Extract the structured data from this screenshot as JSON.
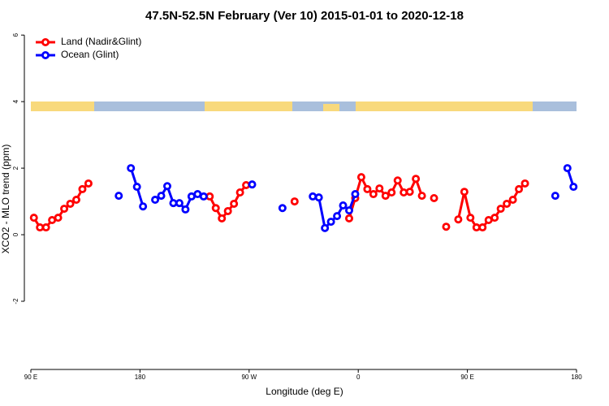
{
  "chart_data": {
    "type": "line",
    "title": "47.5N-52.5N February (Ver 10)   2015-01-01 to 2020-12-18",
    "xlabel": "Longitude (deg E)",
    "ylabel": "XCO2 - MLO trend (ppm)",
    "x": [
      92.5,
      97.5,
      102.5,
      107.5,
      112.5,
      117.5,
      122.5,
      127.5,
      132.5,
      137.5,
      142.5,
      147.5,
      152.5,
      157.5,
      162.5,
      167.5,
      172.5,
      177.5,
      182.5,
      187.5,
      192.5,
      197.5,
      202.5,
      207.5,
      212.5,
      217.5,
      222.5,
      227.5,
      232.5,
      237.5,
      242.5,
      247.5,
      252.5,
      257.5,
      262.5,
      267.5,
      272.5,
      277.5,
      282.5,
      287.5,
      292.5,
      297.5,
      302.5,
      307.5,
      312.5,
      317.5,
      322.5,
      327.5,
      332.5,
      337.5,
      342.5,
      347.5,
      352.5,
      357.5,
      362.5,
      367.5,
      372.5,
      377.5,
      382.5,
      387.5,
      392.5,
      397.5,
      402.5,
      407.5,
      412.5,
      417.5,
      422.5,
      427.5,
      432.5,
      437.5,
      442.5,
      447.5,
      452.5,
      457.5,
      462.5,
      467.5,
      472.5,
      477.5,
      482.5,
      487.5,
      492.5,
      497.5,
      502.5,
      507.5,
      512.5,
      517.5,
      522.5,
      527.5,
      532.5,
      537.5
    ],
    "series": [
      {
        "name": "Land (Nadir&Glint)",
        "color": "#ff0000",
        "values": [
          0.51,
          0.22,
          0.22,
          0.44,
          0.51,
          0.78,
          0.93,
          1.05,
          1.37,
          1.54,
          null,
          null,
          null,
          null,
          null,
          null,
          null,
          null,
          null,
          null,
          null,
          null,
          null,
          null,
          null,
          null,
          null,
          null,
          null,
          1.15,
          0.8,
          0.49,
          0.71,
          0.93,
          1.27,
          1.49,
          null,
          null,
          null,
          null,
          null,
          null,
          null,
          1.0,
          null,
          null,
          null,
          null,
          null,
          null,
          null,
          null,
          0.49,
          1.1,
          1.73,
          1.37,
          1.22,
          1.39,
          1.17,
          1.27,
          1.63,
          1.27,
          1.29,
          1.68,
          1.17,
          null,
          1.1,
          null,
          0.24,
          null,
          0.46,
          1.29,
          0.51,
          0.22,
          0.22,
          0.44,
          0.51,
          0.78,
          0.93,
          1.05,
          1.37,
          1.54,
          null,
          null,
          null,
          null,
          null,
          null,
          null,
          null
        ]
      },
      {
        "name": "Ocean (Glint)",
        "color": "#0000ff",
        "values": [
          null,
          null,
          null,
          null,
          null,
          null,
          null,
          null,
          null,
          null,
          null,
          null,
          null,
          null,
          1.17,
          null,
          2.0,
          1.44,
          0.85,
          null,
          1.05,
          1.17,
          1.46,
          0.95,
          0.95,
          0.76,
          1.15,
          1.22,
          1.15,
          null,
          null,
          null,
          null,
          null,
          null,
          null,
          1.51,
          null,
          null,
          null,
          null,
          0.8,
          null,
          null,
          null,
          null,
          1.15,
          1.12,
          0.2,
          0.39,
          0.56,
          0.88,
          0.73,
          1.22,
          null,
          null,
          null,
          null,
          null,
          null,
          null,
          null,
          null,
          null,
          null,
          null,
          null,
          null,
          null,
          null,
          null,
          null,
          null,
          null,
          null,
          null,
          null,
          null,
          null,
          null,
          null,
          null,
          null,
          null,
          null,
          null,
          1.17,
          null,
          2.0,
          1.44
        ]
      }
    ],
    "xlim": [
      90,
      540
    ],
    "xticks": [
      {
        "value": 90,
        "label": "90 E"
      },
      180,
      {
        "value": 270,
        "label": "90 W"
      },
      {
        "value": 360,
        "label": "0"
      },
      {
        "value": 450,
        "label": "90 E"
      },
      {
        "value": 540,
        "label": "180"
      }
    ],
    "ylim": [
      -4.05,
      6.2
    ],
    "yticks": [
      -2,
      0,
      2,
      4,
      6
    ],
    "legend": "upper left"
  }
}
